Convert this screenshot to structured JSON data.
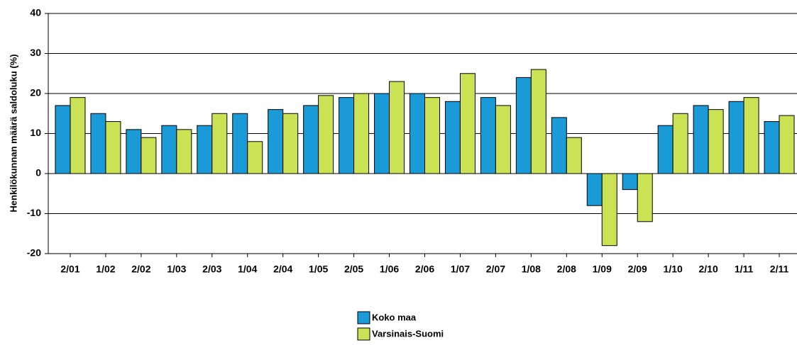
{
  "chart_data": {
    "type": "bar",
    "ylabel": "Henkilökunnan määrä saldoluku (%)",
    "categories": [
      "2/01",
      "1/02",
      "2/02",
      "1/03",
      "2/03",
      "1/04",
      "2/04",
      "1/05",
      "2/05",
      "1/06",
      "2/06",
      "1/07",
      "2/07",
      "1/08",
      "2/08",
      "1/09",
      "2/09",
      "1/10",
      "2/10",
      "1/11",
      "2/11"
    ],
    "series": [
      {
        "name": "Koko maa",
        "color": "#1a9ad6",
        "values": [
          17,
          15,
          11,
          12,
          12,
          15,
          16,
          17,
          19,
          20,
          20,
          18,
          19,
          24,
          14,
          -8,
          -4,
          12,
          17,
          18,
          13
        ]
      },
      {
        "name": "Varsinais-Suomi",
        "color": "#cbe254",
        "values": [
          19,
          13,
          9,
          11,
          15,
          8,
          15,
          19.5,
          20,
          23,
          19,
          25,
          17,
          26,
          9,
          -18,
          -12,
          15,
          16,
          19,
          14.5
        ]
      }
    ],
    "ylim": [
      -20,
      40
    ],
    "yticks": [
      -20,
      -10,
      0,
      10,
      20,
      30,
      40
    ],
    "grid": true
  }
}
